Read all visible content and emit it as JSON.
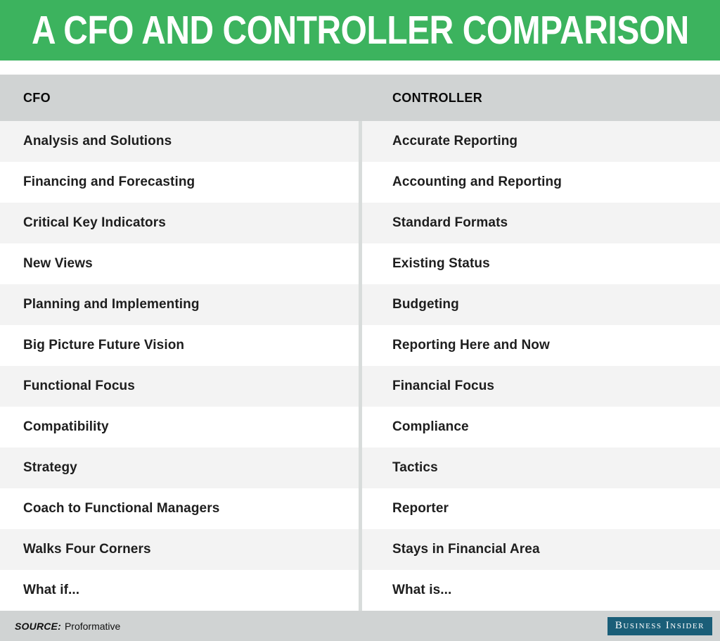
{
  "title": "A CFO AND CONTROLLER COMPARISON",
  "chart_data": {
    "type": "table",
    "title": "A CFO AND CONTROLLER COMPARISON",
    "columns": [
      "CFO",
      "CONTROLLER"
    ],
    "rows": [
      [
        "Analysis and Solutions",
        "Accurate Reporting"
      ],
      [
        "Financing and Forecasting",
        "Accounting and Reporting"
      ],
      [
        "Critical Key Indicators",
        "Standard Formats"
      ],
      [
        "New Views",
        "Existing Status"
      ],
      [
        "Planning and Implementing",
        "Budgeting"
      ],
      [
        "Big Picture Future Vision",
        "Reporting Here and Now"
      ],
      [
        "Functional Focus",
        "Financial Focus"
      ],
      [
        "Compatibility",
        "Compliance"
      ],
      [
        "Strategy",
        "Tactics"
      ],
      [
        "Coach to Functional Managers",
        "Reporter"
      ],
      [
        "Walks Four Corners",
        "Stays in Financial Area"
      ],
      [
        "What if...",
        "What is..."
      ]
    ],
    "source": "Proformative"
  },
  "footer": {
    "source_label": "SOURCE:",
    "source_value": "Proformative",
    "brand": "Business Insider"
  },
  "colors": {
    "header_green": "#3cb35e",
    "bar_gray": "#d0d3d3",
    "row_alt_gray": "#f3f3f3",
    "row_white": "#ffffff",
    "divider": "#d8dcdb",
    "text_dark": "#1e1e1e",
    "brand_bg": "#1a5e78",
    "brand_text": "#ffffff"
  }
}
